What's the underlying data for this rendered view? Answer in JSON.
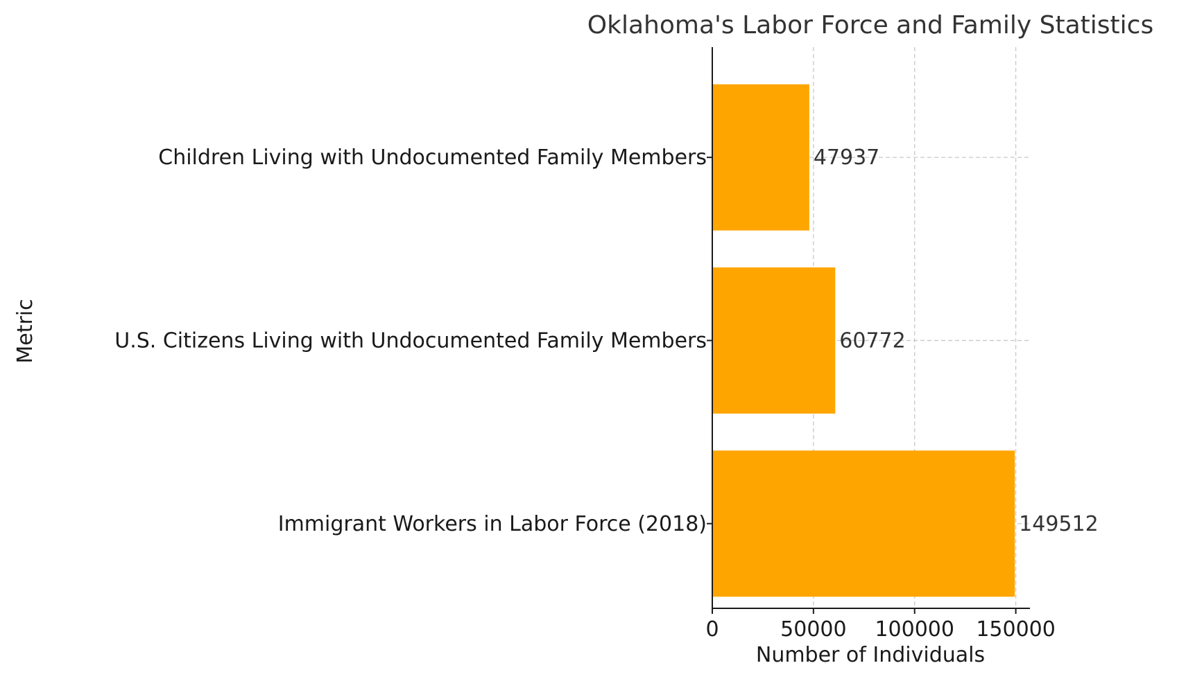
{
  "chart_data": {
    "type": "bar",
    "orientation": "horizontal",
    "title": "Oklahoma's Labor Force and Family Statistics",
    "xlabel": "Number of Individuals",
    "ylabel": "Metric",
    "categories": [
      "Immigrant Workers in Labor Force (2018)",
      "U.S. Citizens Living with Undocumented Family Members",
      "Children Living with Undocumented Family Members"
    ],
    "values": [
      149512,
      60772,
      47937
    ],
    "value_labels": [
      "149512",
      "60772",
      "47937"
    ],
    "xlim": [
      0,
      157000
    ],
    "xticks": [
      0,
      50000,
      100000,
      150000
    ],
    "xtick_labels": [
      "0",
      "50000",
      "100000",
      "150000"
    ],
    "grid": true,
    "bar_color": "#FFA500"
  }
}
